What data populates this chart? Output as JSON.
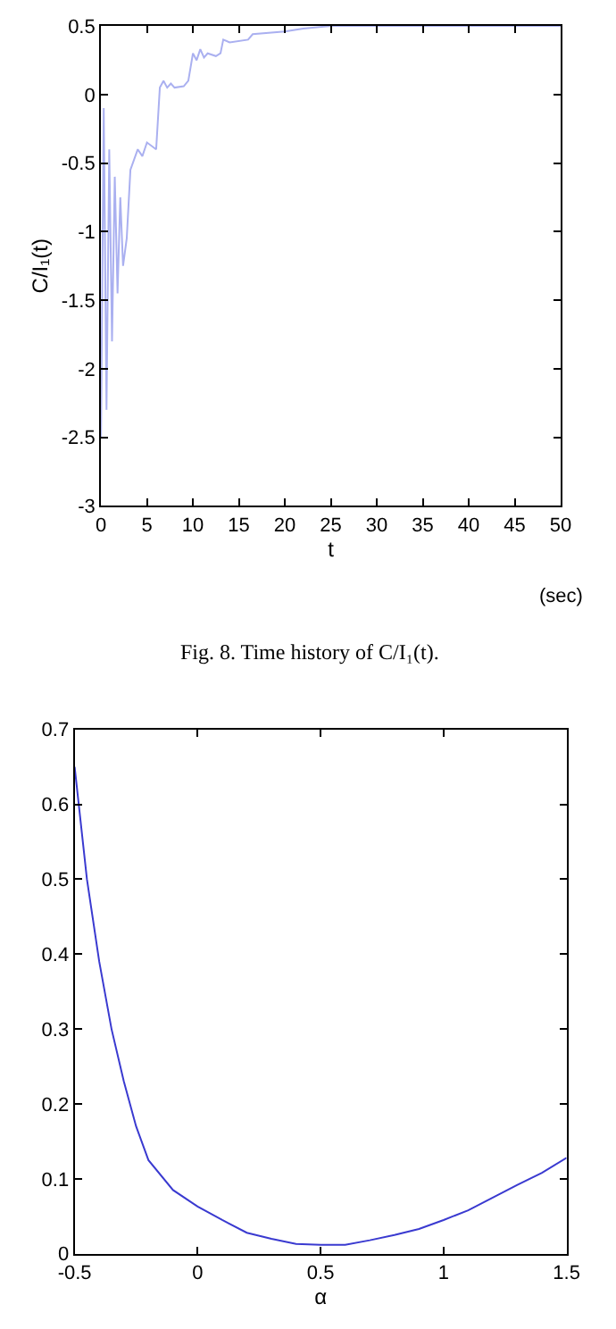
{
  "chart_data": [
    {
      "type": "line",
      "xlabel": "t",
      "ylabel": "C/I₁(t)",
      "x": [
        0,
        0.3,
        0.6,
        0.9,
        1.2,
        1.5,
        1.8,
        2.1,
        2.4,
        2.8,
        3.2,
        4,
        4.5,
        5,
        6,
        6.4,
        6.8,
        7.2,
        7.6,
        8,
        9,
        9.5,
        10,
        10.4,
        10.8,
        11.2,
        11.6,
        12.5,
        13,
        13.3,
        14,
        16,
        16.5,
        20,
        22,
        25,
        50
      ],
      "series": [
        {
          "color": "#aab0f0",
          "values": [
            -2.5,
            -0.1,
            -2.3,
            -0.4,
            -1.8,
            -0.6,
            -1.45,
            -0.75,
            -1.25,
            -1.05,
            -0.55,
            -0.4,
            -0.45,
            -0.35,
            -0.4,
            0.05,
            0.1,
            0.05,
            0.08,
            0.05,
            0.06,
            0.1,
            0.3,
            0.25,
            0.33,
            0.27,
            0.3,
            0.28,
            0.3,
            0.4,
            0.38,
            0.4,
            0.44,
            0.46,
            0.48,
            0.5,
            0.5
          ]
        }
      ],
      "xlim": [
        0,
        50
      ],
      "xticks": [
        0,
        5,
        10,
        15,
        20,
        25,
        30,
        35,
        40,
        45,
        50
      ],
      "ylim": [
        -3,
        0.5
      ],
      "yticks": [
        -3,
        -2.5,
        -2,
        -1.5,
        -1,
        -0.5,
        0,
        0.5
      ],
      "annotations": [
        "(sec)",
        "Fig. 8. Time history of C/I₁(t)."
      ]
    },
    {
      "type": "line",
      "xlabel": "α",
      "x": [
        -0.5,
        -0.45,
        -0.4,
        -0.35,
        -0.3,
        -0.25,
        -0.2,
        -0.1,
        0,
        0.1,
        0.2,
        0.3,
        0.4,
        0.5,
        0.6,
        0.7,
        0.8,
        0.9,
        1.0,
        1.1,
        1.2,
        1.3,
        1.4,
        1.5
      ],
      "series": [
        {
          "color": "#3a3ad0",
          "values": [
            0.65,
            0.5,
            0.39,
            0.3,
            0.23,
            0.17,
            0.125,
            0.085,
            0.063,
            0.045,
            0.028,
            0.02,
            0.013,
            0.012,
            0.012,
            0.018,
            0.025,
            0.033,
            0.045,
            0.058,
            0.075,
            0.092,
            0.108,
            0.128
          ]
        }
      ],
      "xlim": [
        -0.5,
        1.5
      ],
      "xticks": [
        -0.5,
        0,
        0.5,
        1,
        1.5
      ],
      "ylim": [
        0,
        0.7
      ],
      "yticks": [
        0,
        0.1,
        0.2,
        0.3,
        0.4,
        0.5,
        0.6,
        0.7
      ]
    }
  ]
}
